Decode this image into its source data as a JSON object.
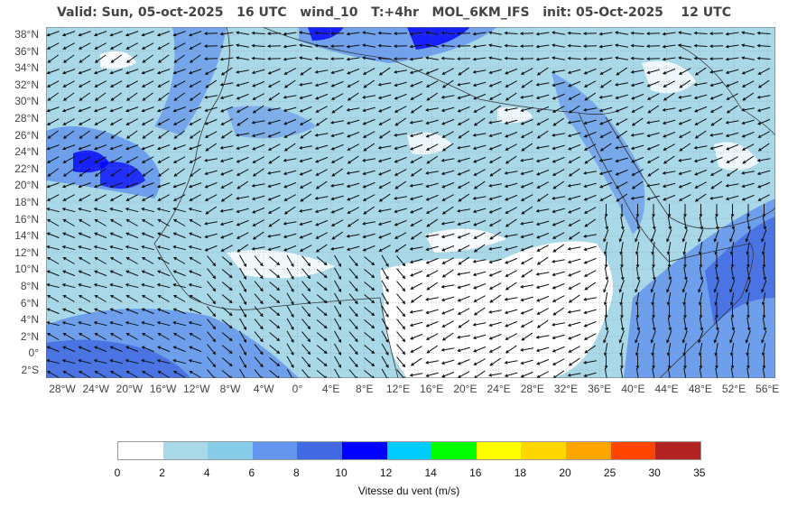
{
  "title": "Valid: Sun, 05-oct-2025   16 UTC   wind_10   T:+4hr   MOL_6KM_IFS   init: 05-Oct-2025    12 UTC",
  "lat_labels": [
    "38°N",
    "36°N",
    "34°N",
    "32°N",
    "30°N",
    "28°N",
    "26°N",
    "24°N",
    "22°N",
    "20°N",
    "18°N",
    "16°N",
    "14°N",
    "12°N",
    "10°N",
    "8°N",
    "6°N",
    "4°N",
    "2°N",
    "0°",
    "2°S"
  ],
  "lon_labels": [
    "28°W",
    "24°W",
    "20°W",
    "16°W",
    "12°W",
    "8°W",
    "4°W",
    "0°",
    "4°E",
    "8°E",
    "12°E",
    "16°E",
    "20°E",
    "24°E",
    "28°E",
    "32°E",
    "36°E",
    "40°E",
    "44°E",
    "48°E",
    "52°E",
    "56°E"
  ],
  "colorbar": {
    "label": "Vitesse du vent (m/s)",
    "ticks": [
      "0",
      "2",
      "4",
      "6",
      "8",
      "10",
      "12",
      "14",
      "16",
      "18",
      "20",
      "25",
      "30",
      "35"
    ],
    "colors": [
      "#ffffff",
      "#a9d8e8",
      "#87cdea",
      "#6495ed",
      "#4169e1",
      "#0000ff",
      "#00ccff",
      "#00ff00",
      "#ffff00",
      "#ffd700",
      "#ffa500",
      "#ff4500",
      "#b22222"
    ]
  }
}
